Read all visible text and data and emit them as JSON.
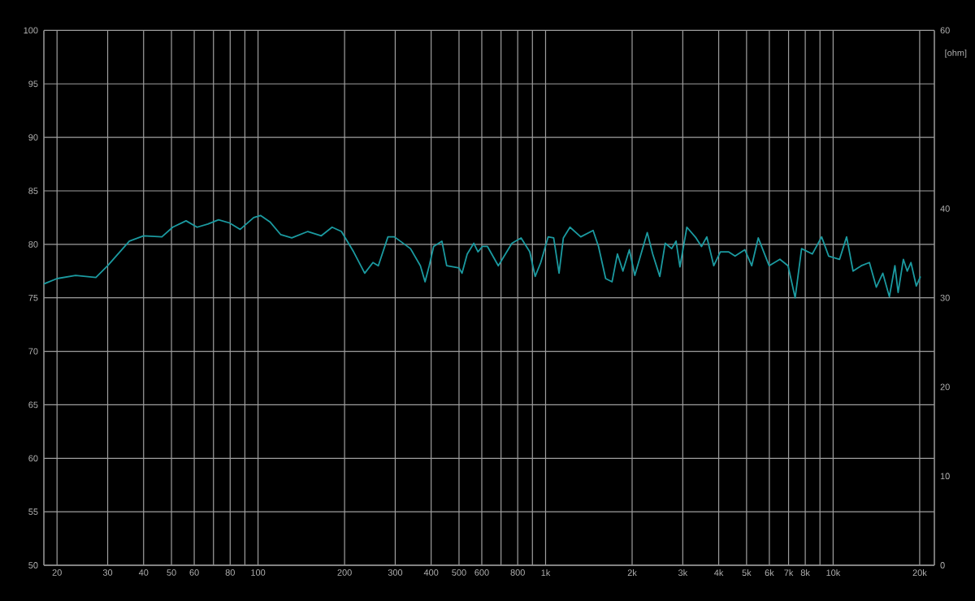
{
  "chart_data": {
    "type": "line",
    "log": "x",
    "grid": true,
    "y2label": "[ohm]",
    "xlim": [
      18,
      22500
    ],
    "ylim": [
      50,
      100
    ],
    "y2lim": [
      0,
      60
    ],
    "xticks": [
      20,
      30,
      40,
      50,
      60,
      {
        "value": 70,
        "label": null
      },
      80,
      {
        "value": 90,
        "label": null
      },
      100,
      200,
      300,
      400,
      500,
      600,
      {
        "value": 700,
        "label": null
      },
      800,
      {
        "value": 900,
        "label": null
      },
      {
        "value": 1000,
        "label": "1k"
      },
      {
        "value": 2000,
        "label": "2k"
      },
      {
        "value": 3000,
        "label": "3k"
      },
      {
        "value": 4000,
        "label": "4k"
      },
      {
        "value": 5000,
        "label": "5k"
      },
      {
        "value": 6000,
        "label": "6k"
      },
      {
        "value": 7000,
        "label": "7k"
      },
      {
        "value": 8000,
        "label": "8k"
      },
      {
        "value": 9000,
        "label": null
      },
      {
        "value": 10000,
        "label": "10k"
      },
      {
        "value": 20000,
        "label": "20k"
      }
    ],
    "yticks": [
      50,
      55,
      60,
      65,
      70,
      75,
      80,
      85,
      90,
      95,
      100
    ],
    "y2ticks": [
      0,
      10,
      20,
      30,
      40,
      60
    ],
    "x": [
      18,
      20,
      23.2,
      27.3,
      30,
      35.7,
      40,
      46.3,
      50.5,
      56.2,
      61.4,
      66.9,
      72.9,
      79.6,
      86.7,
      96.6,
      102,
      110,
      120,
      131,
      149,
      166,
      181,
      195,
      215,
      235,
      251,
      262,
      283,
      298,
      339,
      367,
      381,
      394,
      408,
      436,
      453,
      500,
      512,
      534,
      563,
      582,
      603,
      628,
      685,
      764,
      822,
      881,
      920,
      962,
      1021,
      1067,
      1114,
      1153,
      1216,
      1325,
      1463,
      1528,
      1618,
      1703,
      1778,
      1858,
      1956,
      2043,
      2258,
      2358,
      2496,
      2606,
      2745,
      2843,
      2933,
      3100,
      3336,
      3485,
      3637,
      3846,
      4054,
      4325,
      4560,
      4930,
      5210,
      5490,
      5990,
      6530,
      6970,
      7380,
      7770,
      8470,
      9120,
      9650,
      10530,
      11140,
      11730,
      12530,
      13370,
      14130,
      14890,
      15690,
      16400,
      16830,
      17550,
      18100,
      18650,
      19470,
      20130
    ],
    "series": [
      {
        "color": "#1b9aa0",
        "values": [
          76.3,
          76.8,
          77.1,
          76.9,
          78.0,
          80.3,
          80.8,
          80.7,
          81.6,
          82.2,
          81.6,
          81.9,
          82.3,
          82.0,
          81.4,
          82.5,
          82.7,
          82.1,
          80.9,
          80.6,
          81.2,
          80.8,
          81.6,
          81.2,
          79.3,
          77.3,
          78.3,
          78.0,
          80.7,
          80.7,
          79.6,
          78.0,
          76.5,
          78.0,
          79.8,
          80.3,
          78.0,
          77.8,
          77.3,
          79.1,
          80.1,
          79.3,
          79.8,
          79.8,
          78.0,
          80.1,
          80.6,
          79.3,
          77.0,
          78.3,
          80.7,
          80.6,
          77.3,
          80.6,
          81.6,
          80.7,
          81.3,
          79.8,
          76.8,
          76.5,
          79.1,
          77.5,
          79.5,
          77.1,
          81.1,
          79.1,
          77.0,
          80.1,
          79.6,
          80.3,
          77.9,
          81.6,
          80.6,
          79.8,
          80.7,
          78.0,
          79.3,
          79.3,
          78.9,
          79.5,
          78.0,
          80.6,
          78.0,
          78.6,
          78.0,
          75.0,
          79.6,
          79.1,
          80.7,
          78.9,
          78.6,
          80.7,
          77.5,
          78.0,
          78.3,
          76.0,
          77.3,
          75.1,
          78.0,
          75.5,
          78.6,
          77.5,
          78.3,
          76.1,
          77.0
        ]
      }
    ]
  }
}
